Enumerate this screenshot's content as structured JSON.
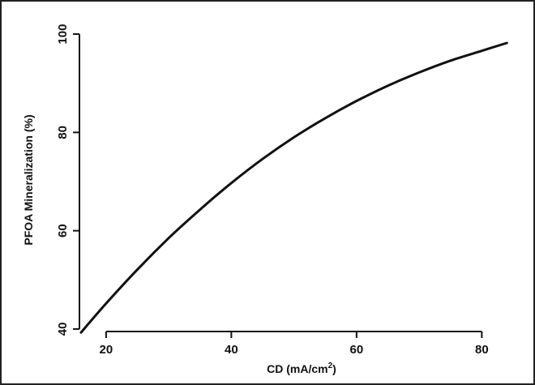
{
  "chart_data": {
    "type": "line",
    "title": "",
    "xlabel": "CD (mA/cm²)",
    "xlabel_base": "CD (mA/cm",
    "xlabel_sup": "2",
    "xlabel_close": ")",
    "ylabel": "PFOA Mineralization (%)",
    "xlim": [
      16,
      85
    ],
    "ylim": [
      39,
      101
    ],
    "xticks": [
      20,
      40,
      60,
      80
    ],
    "yticks": [
      40,
      60,
      80,
      100
    ],
    "grid": false,
    "legend": "none",
    "series": [
      {
        "color": "#111111",
        "x": [
          16,
          20,
          25,
          30,
          35,
          40,
          45,
          50,
          55,
          60,
          65,
          70,
          75,
          80,
          84
        ],
        "y": [
          39.3,
          45.2,
          52.1,
          58.5,
          64.3,
          69.7,
          74.6,
          79.0,
          82.9,
          86.4,
          89.5,
          92.2,
          94.6,
          96.6,
          98.2
        ]
      }
    ]
  }
}
